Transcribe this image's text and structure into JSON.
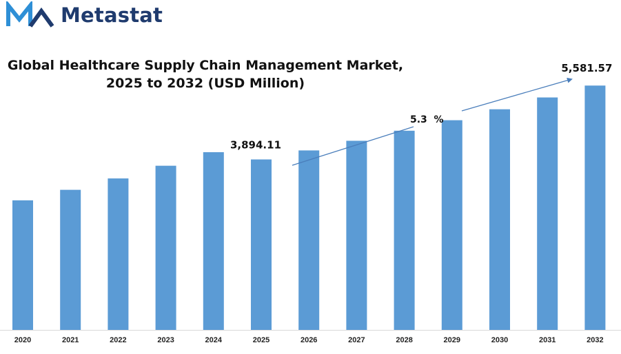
{
  "brand": {
    "name": "Metastat",
    "color_primary": "#1f3b6e",
    "color_accent": "#2e8fd6",
    "icon": "logo-m-icon"
  },
  "chart_data": {
    "type": "bar",
    "title_line1": "Global Healthcare Supply Chain Management Market,",
    "title_line2": "2025 to 2032 (USD Million)",
    "categories": [
      "2020",
      "2021",
      "2022",
      "2023",
      "2024",
      "2025",
      "2026",
      "2027",
      "2028",
      "2029",
      "2030",
      "2031",
      "2032"
    ],
    "values": [
      2960,
      3200,
      3460,
      3750,
      4060,
      3894.11,
      4100,
      4320,
      4550,
      4790,
      5040,
      5310,
      5581.57
    ],
    "data_labels": [
      {
        "category": "2025",
        "text": "3,894.11"
      },
      {
        "category": "2032",
        "text": "5,581.57"
      }
    ],
    "cagr_label": "5.3  %",
    "bar_color": "#5b9bd5",
    "arrow_color": "#4a7ebb",
    "ylim": [
      0,
      5900
    ],
    "y_axis_shown": false,
    "grid": false
  }
}
